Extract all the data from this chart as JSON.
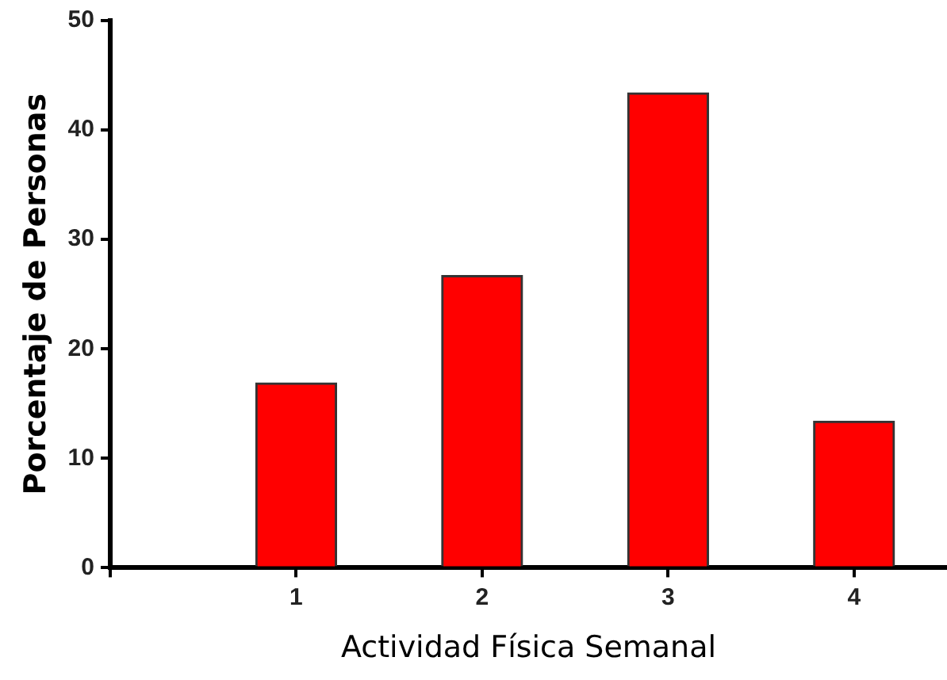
{
  "chart_data": {
    "type": "bar",
    "xlabel": "Actividad Física Semanal",
    "ylabel": "Porcentaje de Personas",
    "x": [
      1,
      2,
      3,
      4
    ],
    "values": [
      16.9,
      26.7,
      43.4,
      13.4
    ],
    "color": "#ff0000",
    "xlim": [
      0,
      4.5
    ],
    "xticks": [
      {
        "value": 0,
        "label": null
      },
      1,
      2,
      3,
      4
    ],
    "ylim": [
      0,
      50
    ],
    "yticks": [
      0,
      10,
      20,
      30,
      40,
      50
    ],
    "grid": false,
    "legend": false
  }
}
